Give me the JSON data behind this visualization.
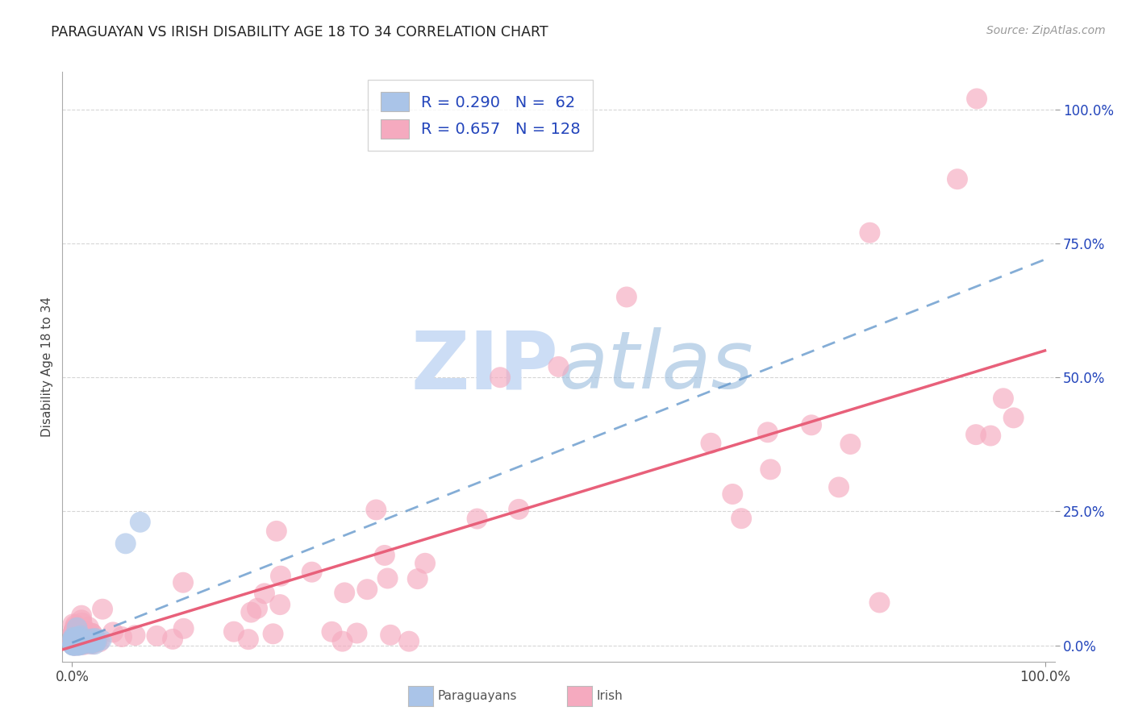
{
  "title": "PARAGUAYAN VS IRISH DISABILITY AGE 18 TO 34 CORRELATION CHART",
  "source": "Source: ZipAtlas.com",
  "ylabel": "Disability Age 18 to 34",
  "paraguayan_R": 0.29,
  "paraguayan_N": 62,
  "irish_R": 0.657,
  "irish_N": 128,
  "paraguayan_color": "#aac4e8",
  "paraguayan_edge": "#88aadd",
  "irish_color": "#f5aabf",
  "irish_edge": "#ee88aa",
  "paraguayan_line_color": "#6699cc",
  "irish_line_color": "#e8607a",
  "legend_text_color": "#2244bb",
  "title_color": "#222222",
  "background_color": "#ffffff",
  "grid_color": "#cccccc",
  "watermark_color": "#ccddf5",
  "par_line_intercept": 0.005,
  "par_line_slope": 0.72,
  "iri_line_intercept": -0.03,
  "iri_line_slope": 0.55
}
